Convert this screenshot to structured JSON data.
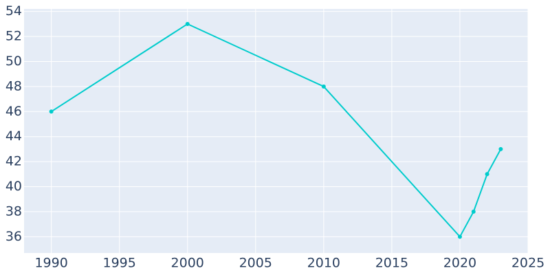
{
  "chart_data": {
    "type": "line",
    "x": [
      1990,
      2000,
      2010,
      2020,
      2021,
      2022,
      2023
    ],
    "series": [
      {
        "color": "#00cccc",
        "values": [
          46,
          53,
          48,
          36,
          38,
          41,
          43
        ]
      }
    ],
    "xlim": [
      1988,
      2025
    ],
    "xticks": [
      1990,
      1995,
      2000,
      2005,
      2010,
      2015,
      2020,
      2025
    ],
    "ylim": [
      34.7,
      54.2
    ],
    "yticks": [
      36,
      38,
      40,
      42,
      44,
      46,
      48,
      50,
      52,
      54
    ],
    "grid": true
  }
}
